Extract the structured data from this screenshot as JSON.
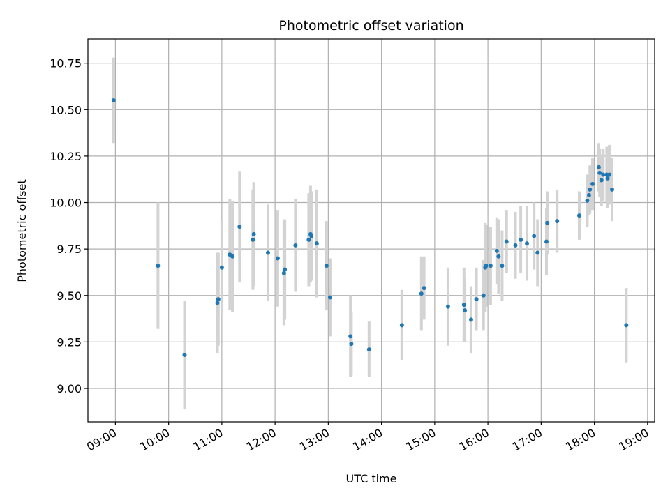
{
  "chart_data": {
    "type": "scatter",
    "title": "Photometric offset variation",
    "xlabel": "UTC time",
    "ylabel": "Photometric offset",
    "x_tick_labels": [
      "09:00",
      "10:00",
      "11:00",
      "12:00",
      "13:00",
      "14:00",
      "15:00",
      "16:00",
      "17:00",
      "18:00",
      "19:00"
    ],
    "y_tick_labels": [
      "9.00",
      "9.25",
      "9.50",
      "9.75",
      "10.00",
      "10.25",
      "10.50",
      "10.75"
    ],
    "y_ticks": [
      9.0,
      9.25,
      9.5,
      9.75,
      10.0,
      10.25,
      10.5,
      10.75
    ],
    "xlim": [
      "08:29",
      "19:08"
    ],
    "ylim": [
      8.82,
      10.88
    ],
    "grid": true,
    "colors": {
      "points": "#1f77b4",
      "errorbars": "#d3d3d3",
      "grid": "#b0b0b0"
    },
    "series": [
      {
        "x": [
          "08:58",
          "09:48",
          "10:18",
          "10:55",
          "10:56",
          "11:00",
          "11:09",
          "11:12",
          "11:20",
          "11:35",
          "11:36",
          "11:52",
          "12:03",
          "12:10",
          "12:11",
          "12:23",
          "12:38",
          "12:40",
          "12:41",
          "12:47",
          "12:58",
          "13:02",
          "13:25",
          "13:26",
          "13:46",
          "14:23",
          "14:45",
          "14:48",
          "15:15",
          "15:33",
          "15:34",
          "15:41",
          "15:47",
          "15:55",
          "15:57",
          "15:58",
          "16:03",
          "16:10",
          "16:12",
          "16:16",
          "16:21",
          "16:31",
          "16:37",
          "16:44",
          "16:52",
          "16:56",
          "17:06",
          "17:07",
          "17:18",
          "17:43",
          "17:52",
          "17:54",
          "17:55",
          "17:58",
          "18:05",
          "18:06",
          "18:08",
          "18:10",
          "18:14",
          "18:15",
          "18:17",
          "18:20"
        ],
        "y": [
          10.55,
          9.66,
          9.18,
          9.46,
          9.48,
          9.65,
          9.72,
          9.71,
          9.87,
          9.8,
          9.83,
          9.73,
          9.7,
          9.62,
          9.64,
          9.77,
          9.8,
          9.83,
          9.82,
          9.78,
          9.66,
          9.49,
          9.28,
          9.24,
          9.21,
          9.34,
          9.51,
          9.54,
          9.44,
          9.45,
          9.42,
          9.37,
          9.48,
          9.5,
          9.65,
          9.66,
          9.66,
          9.74,
          9.71,
          9.66,
          9.79,
          9.77,
          9.8,
          9.78,
          9.82,
          9.73,
          9.79,
          9.89,
          9.9,
          9.93,
          10.01,
          10.04,
          10.07,
          10.1,
          10.19,
          10.16,
          10.12,
          10.15,
          10.15,
          10.13,
          10.15,
          10.07
        ],
        "yerr": [
          0.23,
          0.34,
          0.29,
          0.27,
          0.25,
          0.25,
          0.3,
          0.3,
          0.3,
          0.27,
          0.28,
          0.26,
          0.26,
          0.28,
          0.27,
          0.25,
          0.25,
          0.26,
          0.24,
          0.29,
          0.24,
          0.21,
          0.22,
          0.17,
          0.15,
          0.19,
          0.2,
          0.17,
          0.21,
          0.2,
          0.17,
          0.18,
          0.17,
          0.19,
          0.24,
          0.22,
          0.21,
          0.18,
          0.2,
          0.19,
          0.17,
          0.18,
          0.18,
          0.2,
          0.18,
          0.18,
          0.18,
          0.17,
          0.17,
          0.13,
          0.14,
          0.11,
          0.13,
          0.14,
          0.13,
          0.13,
          0.14,
          0.14,
          0.15,
          0.16,
          0.16,
          0.17
        ]
      },
      {
        "x": [
          "18:36"
        ],
        "y": [
          9.34
        ],
        "yerr": [
          0.2
        ]
      }
    ]
  }
}
